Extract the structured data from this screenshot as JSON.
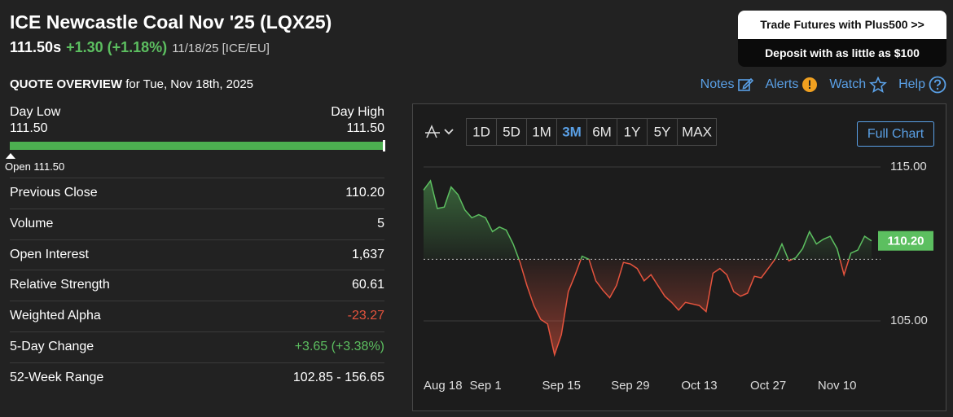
{
  "header": {
    "title": "ICE Newcastle Coal Nov '25 (LQX25)",
    "price": "111.50s",
    "change": "+1.30 (+1.18%)",
    "date": "11/18/25 [ICE/EU]"
  },
  "promo": {
    "top": "Trade Futures with Plus500 >>",
    "bottom": "Deposit with as little as $100"
  },
  "overview": {
    "title": "QUOTE OVERVIEW",
    "subtitle": "for Tue, Nov 18th, 2025"
  },
  "links": [
    "Notes",
    "Alerts",
    "Watch",
    "Help"
  ],
  "colors": {
    "up": "#5cbf60",
    "down": "#e5533d",
    "neutral": "#ffffff"
  },
  "day_range": {
    "low_label": "Day Low",
    "low": "111.50",
    "high_label": "Day High",
    "high": "111.50",
    "open": "Open 111.50"
  },
  "stats": {
    "rows": [
      {
        "label": "Previous Close",
        "value": "110.20",
        "tone": "neutral"
      },
      {
        "label": "Volume",
        "value": "5",
        "tone": "neutral"
      },
      {
        "label": "Open Interest",
        "value": "1,637",
        "tone": "neutral"
      },
      {
        "label": "Relative Strength",
        "value": "60.61",
        "tone": "neutral"
      },
      {
        "label": "Weighted Alpha",
        "value": "-23.27",
        "tone": "down"
      },
      {
        "label": "5-Day Change",
        "value": "+3.65 (+3.38%)",
        "tone": "up"
      },
      {
        "label": "52-Week Range",
        "value": "102.85 - 156.65",
        "tone": "neutral"
      }
    ]
  },
  "chart_controls": {
    "ranges": [
      "1D",
      "5D",
      "1M",
      "3M",
      "6M",
      "1Y",
      "5Y",
      "MAX"
    ],
    "selected_range": "3M",
    "full_chart": "Full Chart"
  },
  "chart_data": {
    "type": "line",
    "categories": [
      "Aug 18",
      null,
      null,
      null,
      null,
      null,
      null,
      null,
      null,
      "Sep 1",
      null,
      null,
      null,
      null,
      null,
      null,
      null,
      null,
      null,
      null,
      "Sep 15",
      null,
      null,
      null,
      null,
      null,
      null,
      null,
      null,
      null,
      "Sep 29",
      null,
      null,
      null,
      null,
      null,
      null,
      null,
      null,
      null,
      "Oct 13",
      null,
      null,
      null,
      null,
      null,
      null,
      null,
      null,
      null,
      "Oct 27",
      null,
      null,
      null,
      null,
      null,
      null,
      null,
      null,
      null,
      "Nov 10",
      null,
      null,
      null,
      null,
      null
    ],
    "values": [
      113.5,
      114.1,
      112.3,
      112.4,
      113.7,
      113.2,
      112.2,
      111.7,
      111.9,
      111.7,
      110.8,
      111.1,
      110.9,
      110.0,
      108.8,
      107.3,
      106.0,
      105.1,
      104.8,
      102.8,
      104.1,
      106.9,
      108.0,
      109.2,
      109.0,
      107.6,
      107.0,
      106.5,
      107.3,
      108.8,
      108.7,
      108.4,
      107.6,
      108.0,
      107.3,
      106.6,
      106.2,
      105.7,
      106.2,
      106.1,
      106.0,
      105.6,
      108.1,
      108.4,
      108.0,
      106.9,
      106.6,
      106.8,
      107.9,
      107.8,
      108.4,
      109.0,
      110.0,
      108.9,
      109.1,
      109.7,
      110.8,
      110.0,
      110.3,
      110.5,
      109.7,
      108.0,
      109.4,
      109.6,
      110.5,
      110.2
    ],
    "value_labels": [
      null,
      null,
      null,
      null,
      null,
      null,
      null,
      null,
      null,
      null,
      null,
      null,
      null,
      null,
      null,
      null,
      null,
      null,
      null,
      null,
      null,
      null,
      null,
      null,
      null,
      null,
      null,
      null,
      null,
      null,
      null,
      null,
      null,
      null,
      null,
      null,
      null,
      null,
      null,
      null,
      null,
      null,
      null,
      null,
      null,
      null,
      null,
      null,
      null,
      null,
      null,
      null,
      null,
      null,
      null,
      null,
      null,
      null,
      null,
      null,
      null,
      null,
      null,
      null,
      null,
      "110.20"
    ],
    "baseline": 109.0,
    "up_color": "#5cbf60",
    "down_color": "#e5533d",
    "ylim": [
      101.77,
      116.06
    ],
    "yticks": [
      {
        "value": 105,
        "label": "105.00"
      },
      {
        "value": 115,
        "label": "115.00"
      }
    ],
    "grid": true
  }
}
